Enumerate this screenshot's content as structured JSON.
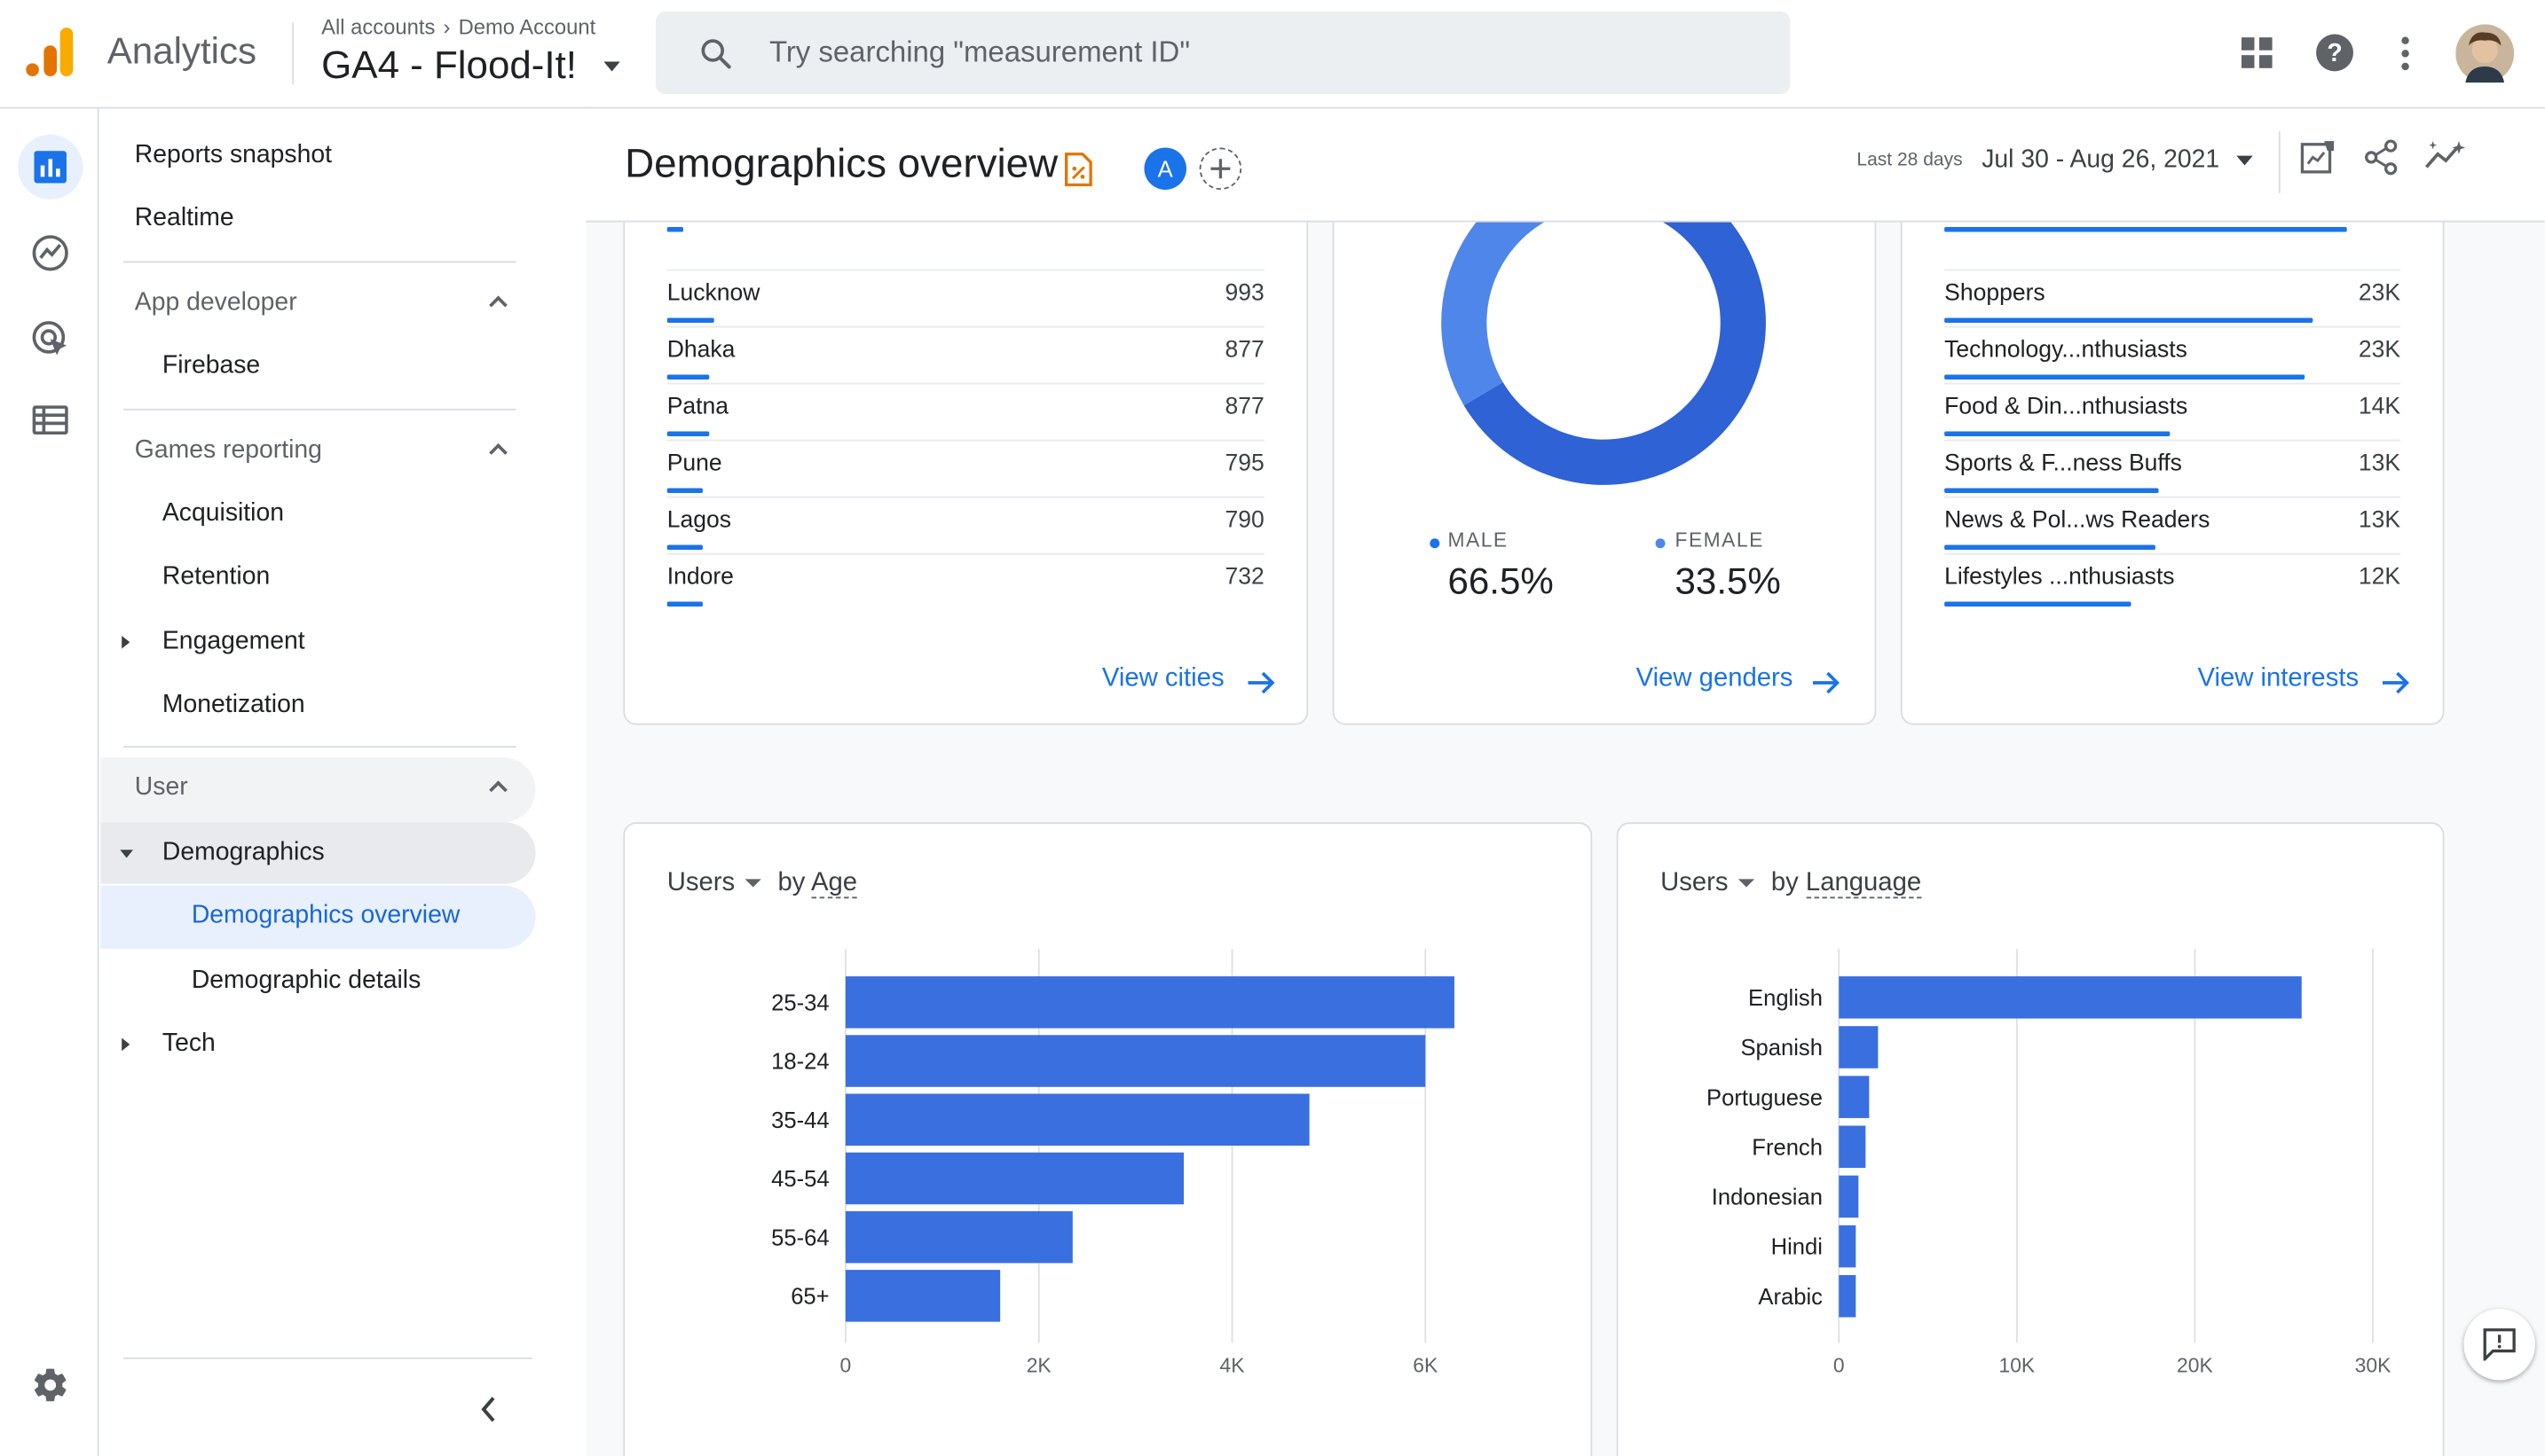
{
  "header": {
    "app_name": "Analytics",
    "breadcrumb": [
      "All accounts",
      "Demo Account"
    ],
    "property": "GA4 - Flood-It!",
    "search_placeholder": "Try searching \"measurement ID\""
  },
  "icons": {
    "logo": "analytics-logo-icon",
    "search": "search-icon",
    "apps": "apps-grid-icon",
    "help": "help-icon",
    "more": "more-vert-icon",
    "rail": [
      "reports-icon",
      "explore-icon",
      "advertising-icon",
      "configure-icon"
    ],
    "settings": "gear-icon"
  },
  "sidebar": {
    "top_items": [
      "Reports snapshot",
      "Realtime"
    ],
    "app_developer": {
      "title": "App developer",
      "items": [
        "Firebase"
      ]
    },
    "games_reporting": {
      "title": "Games reporting",
      "items": [
        "Acquisition",
        "Retention",
        "Engagement",
        "Monetization"
      ]
    },
    "user": {
      "title": "User",
      "demographics": "Demographics",
      "sub_items": [
        "Demographics overview",
        "Demographic details"
      ],
      "tech": "Tech"
    }
  },
  "page": {
    "title": "Demographics overview",
    "comparison_avatar": "A",
    "date_label": "Last 28 days",
    "date_range": "Jul 30 - Aug 26, 2021"
  },
  "cities": {
    "rows": [
      {
        "name": "Lucknow",
        "value": "993",
        "frac": 0.08
      },
      {
        "name": "Dhaka",
        "value": "877",
        "frac": 0.07
      },
      {
        "name": "Patna",
        "value": "877",
        "frac": 0.07
      },
      {
        "name": "Pune",
        "value": "795",
        "frac": 0.06
      },
      {
        "name": "Lagos",
        "value": "790",
        "frac": 0.06
      },
      {
        "name": "Indore",
        "value": "732",
        "frac": 0.06
      }
    ],
    "link": "View cities"
  },
  "genders": {
    "male_label": "MALE",
    "male_value": "66.5%",
    "female_label": "FEMALE",
    "female_value": "33.5%",
    "male_share": 0.665,
    "link": "View genders"
  },
  "interests": {
    "rows": [
      {
        "name": "Shoppers",
        "value": "23K",
        "frac": 0.93
      },
      {
        "name": "Technology...nthusiasts",
        "value": "23K",
        "frac": 0.91
      },
      {
        "name": "Food & Din...nthusiasts",
        "value": "14K",
        "frac": 0.57
      },
      {
        "name": "Sports & F...ness Buffs",
        "value": "13K",
        "frac": 0.54
      },
      {
        "name": "News & Pol...ws Readers",
        "value": "13K",
        "frac": 0.53
      },
      {
        "name": "Lifestyles ...nthusiasts",
        "value": "12K",
        "frac": 0.47
      }
    ],
    "link": "View interests"
  },
  "colors": {
    "accent": "#1a73e8",
    "bar": "#3a6fe0",
    "donut_male": "#2f62d4",
    "donut_female": "#4f86ea"
  },
  "age_card": {
    "metric": "Users",
    "by": "by",
    "dimension": "Age"
  },
  "language_card": {
    "metric": "Users",
    "by": "by",
    "dimension": "Language"
  },
  "chart_data": [
    {
      "type": "bar",
      "orientation": "horizontal",
      "categories": [
        "25-34",
        "18-24",
        "35-44",
        "45-54",
        "55-64",
        "65+"
      ],
      "values": [
        6300,
        6000,
        4800,
        3500,
        2350,
        1600
      ],
      "xlim": [
        0,
        6500
      ],
      "xticks": [
        "0",
        "2K",
        "4K",
        "6K"
      ],
      "xtick_values": [
        0,
        2000,
        4000,
        6000
      ]
    },
    {
      "type": "bar",
      "orientation": "horizontal",
      "categories": [
        "English",
        "Spanish",
        "Portuguese",
        "French",
        "Indonesian",
        "Hindi",
        "Arabic"
      ],
      "values": [
        26000,
        2200,
        1700,
        1500,
        1100,
        950,
        950
      ],
      "xlim": [
        0,
        30000
      ],
      "xticks": [
        "0",
        "10K",
        "20K",
        "30K"
      ],
      "xtick_values": [
        0,
        10000,
        20000,
        30000
      ]
    }
  ]
}
